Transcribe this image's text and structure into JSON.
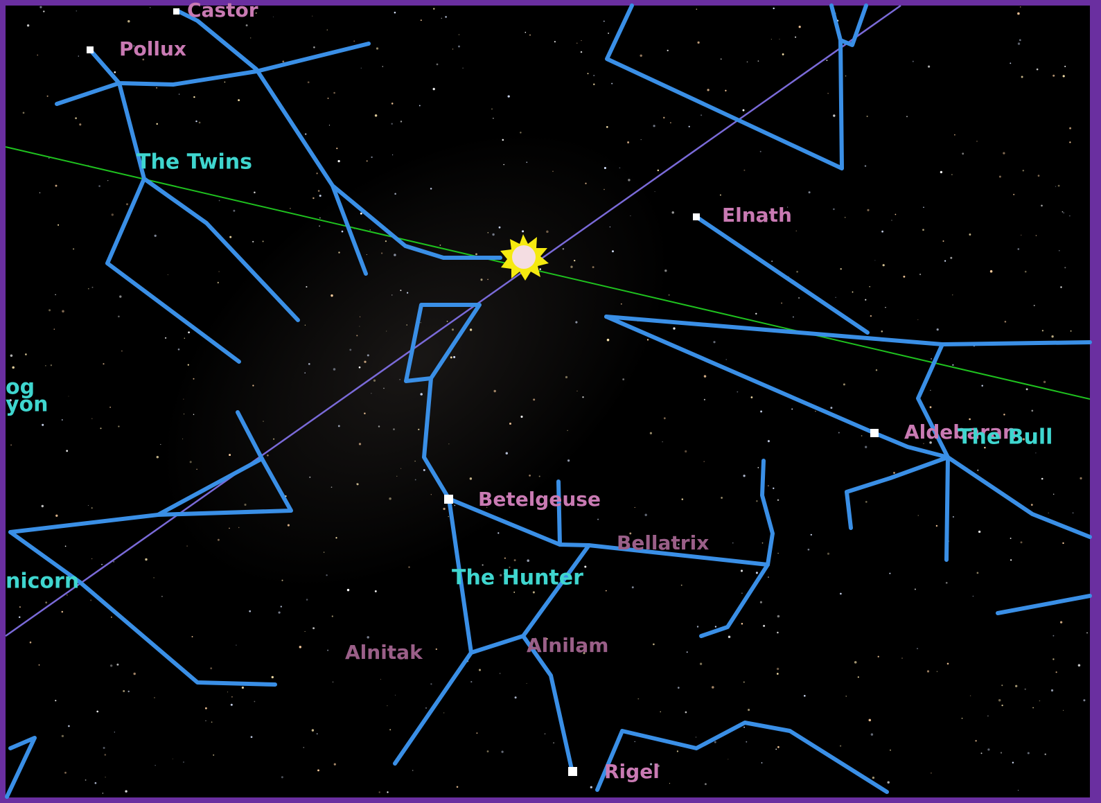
{
  "stars": [
    {
      "label": "Castor"
    },
    {
      "label": "Pollux"
    },
    {
      "label": "Elnath"
    },
    {
      "label": "Aldebaran"
    },
    {
      "label": "Betelgeuse"
    },
    {
      "label": "Bellatrix"
    },
    {
      "label": "Alnitak"
    },
    {
      "label": "Alnilam"
    },
    {
      "label": "Rigel"
    }
  ],
  "constellations": [
    {
      "label": "The Twins"
    },
    {
      "label": "og"
    },
    {
      "label": "yon"
    },
    {
      "label": "nicorn"
    },
    {
      "label": "The Hunter"
    },
    {
      "label": "The Bull"
    }
  ]
}
